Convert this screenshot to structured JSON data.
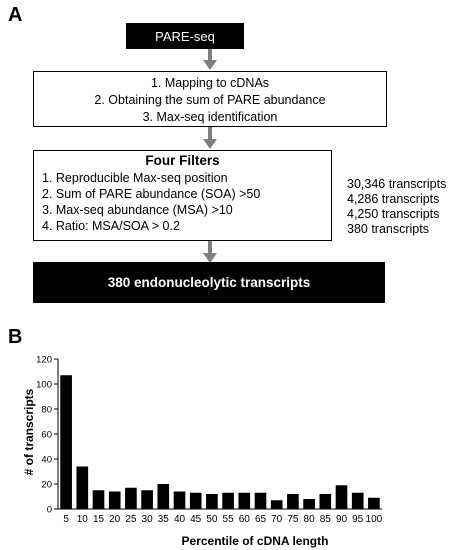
{
  "panels": {
    "a_label": "A",
    "b_label": "B"
  },
  "flowchart": {
    "start_box": "PARE-seq",
    "steps": [
      "1.    Mapping to cDNAs",
      "2.   Obtaining the sum of PARE abundance",
      "3.    Max-seq identification"
    ],
    "filters_title": "Four Filters",
    "filters": [
      "1. Reproducible Max-seq position",
      "2. Sum of PARE abundance (SOA) >50",
      "3. Max-seq abundance (MSA) >10",
      "4. Ratio: MSA/SOA > 0.2"
    ],
    "counts": [
      "30,346 transcripts",
      "4,286 transcripts",
      "4,250 transcripts",
      "380 transcripts"
    ],
    "result_box": "380 endonucleolytic transcripts",
    "arrow_color": "#808080"
  },
  "chart_data": {
    "type": "bar",
    "categories": [
      "5",
      "10",
      "15",
      "20",
      "25",
      "30",
      "35",
      "40",
      "45",
      "50",
      "55",
      "60",
      "65",
      "70",
      "75",
      "80",
      "85",
      "90",
      "95",
      "100"
    ],
    "values": [
      107,
      34,
      15,
      14,
      17,
      15,
      20,
      14,
      13,
      12,
      13,
      13,
      13,
      7,
      12,
      8,
      12,
      19,
      13,
      9
    ],
    "xlabel": "Percentile of cDNA length",
    "ylabel": "# of transcripts",
    "ylim": [
      0,
      120
    ],
    "yticks": [
      "0",
      "20",
      "40",
      "60",
      "80",
      "100",
      "120"
    ],
    "bar_color": "#000000",
    "grid": false
  }
}
